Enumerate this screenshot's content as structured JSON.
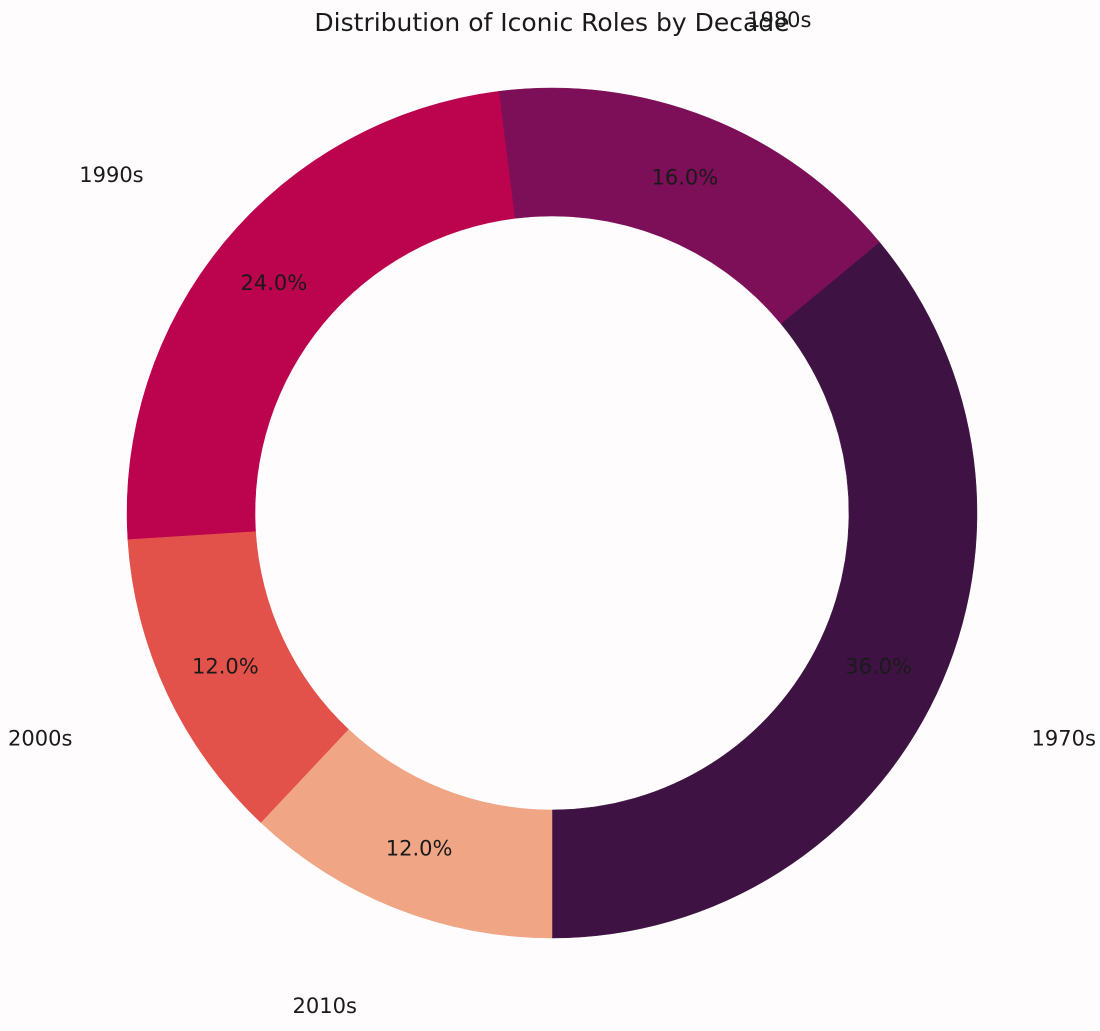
{
  "chart_data": {
    "type": "pie",
    "variant": "donut",
    "title": "Distribution of Iconic Roles by Decade",
    "start_angle_deg": 270,
    "direction": "counterclockwise",
    "slices": [
      {
        "label": "1970s",
        "value": 36.0,
        "pct_label": "36.0%",
        "color": "#3e1343"
      },
      {
        "label": "1980s",
        "value": 16.0,
        "pct_label": "16.0%",
        "color": "#7c0f58"
      },
      {
        "label": "1990s",
        "value": 24.0,
        "pct_label": "24.0%",
        "color": "#bc034d"
      },
      {
        "label": "2000s",
        "value": 12.0,
        "pct_label": "12.0%",
        "color": "#e3524a"
      },
      {
        "label": "2010s",
        "value": 12.0,
        "pct_label": "12.0%",
        "color": "#f0a585"
      }
    ]
  }
}
